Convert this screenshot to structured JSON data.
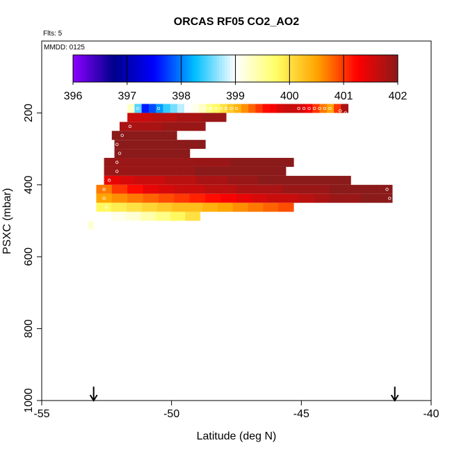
{
  "header": {
    "title": "ORCAS RF05 CO2_AO2",
    "flights_note": "Flts: 5",
    "date_note": "MMDD: 0125"
  },
  "colorbar": {
    "ticks": [
      "396",
      "397",
      "398",
      "399",
      "400",
      "401",
      "402"
    ],
    "min": 396,
    "max": 402,
    "stops": [
      "#8B00FF",
      "#00008B",
      "#0000FF",
      "#00BFFF",
      "#FFFFFF",
      "#FFFF66",
      "#FFA500",
      "#FF0000",
      "#8B1A1A"
    ]
  },
  "chart_data": {
    "type": "heatmap",
    "title": "ORCAS RF05 CO2_AO2",
    "xlabel": "Latitude (deg N)",
    "ylabel": "PSXC (mbar)",
    "xlim": [
      -55,
      -40
    ],
    "ylim": [
      1000,
      0
    ],
    "x_ticks": [
      "-55",
      "-50",
      "-45",
      "-40"
    ],
    "y_ticks": [
      "200",
      "400",
      "600",
      "800",
      "1000"
    ],
    "arrow_latitudes": [
      -53,
      -41.4
    ],
    "pressure_bands": [
      {
        "p": 187.5,
        "lat_start": -51.7,
        "lat_end": -43.2,
        "values": [
          399.3,
          398.5,
          397.6,
          397.8,
          398.1,
          398.4,
          398.6,
          398.8,
          399.0,
          399.1,
          399.3,
          399.6,
          399.8,
          400.0,
          400.2,
          400.4,
          400.6,
          400.8,
          401.0,
          401.2,
          401.3,
          401.5,
          401.6,
          401.6,
          401.5,
          401.3,
          401.0,
          400.7,
          400.5,
          401.0,
          401.8
        ]
      },
      {
        "p": 212.5,
        "lat_start": -51.7,
        "lat_end": -47.9,
        "values": [
          401.6,
          401.6,
          401.7,
          401.7,
          401.8,
          401.8,
          401.9,
          401.9
        ]
      },
      {
        "p": 237.5,
        "lat_start": -52.0,
        "lat_end": -48.7,
        "values": [
          401.8,
          401.8,
          401.8,
          401.9,
          401.9,
          401.9
        ]
      },
      {
        "p": 262.5,
        "lat_start": -52.3,
        "lat_end": -49.8,
        "values": [
          402.0,
          402.0,
          402.0,
          402.0,
          402.0
        ]
      },
      {
        "p": 287.5,
        "lat_start": -52.2,
        "lat_end": -48.7,
        "values": [
          402.0,
          402.0,
          402.0,
          402.0,
          402.0,
          402.0
        ]
      },
      {
        "p": 312.5,
        "lat_start": -52.2,
        "lat_end": -49.3,
        "values": [
          402.0,
          402.0,
          402.0,
          402.0,
          402.0
        ]
      },
      {
        "p": 337.5,
        "lat_start": -52.6,
        "lat_end": -45.3,
        "values": [
          401.9,
          401.9,
          401.9,
          401.9,
          401.9,
          401.9,
          401.9,
          401.9,
          402.0,
          402.0,
          402.0,
          402.0
        ]
      },
      {
        "p": 362.5,
        "lat_start": -52.6,
        "lat_end": -45.6,
        "values": [
          401.9,
          401.9,
          401.9,
          401.9,
          401.9,
          401.9,
          402.0,
          402.0,
          402.0,
          402.0,
          402.0,
          402.0
        ]
      },
      {
        "p": 387.5,
        "lat_start": -52.6,
        "lat_end": -43.1,
        "values": [
          401.4,
          401.5,
          401.6,
          401.6,
          401.7,
          401.7,
          401.8,
          401.8,
          401.9,
          401.9,
          402.0,
          402.0,
          402.0,
          402.0,
          402.0,
          402.0
        ]
      },
      {
        "p": 412.5,
        "lat_start": -52.9,
        "lat_end": -41.5,
        "values": [
          400.7,
          401.0,
          401.2,
          401.4,
          401.5,
          401.6,
          401.6,
          401.7,
          401.7,
          401.8,
          401.8,
          401.8,
          401.9,
          401.9,
          401.9,
          402.0,
          402.0,
          402.0,
          402.0
        ]
      },
      {
        "p": 437.5,
        "lat_start": -52.9,
        "lat_end": -41.5,
        "values": [
          400.5,
          400.6,
          400.7,
          400.8,
          400.9,
          401.0,
          401.1,
          401.2,
          401.3,
          401.4,
          401.5,
          401.6,
          401.6,
          401.7,
          401.8,
          401.9,
          401.9,
          402.0,
          402.0
        ]
      },
      {
        "p": 462.5,
        "lat_start": -52.9,
        "lat_end": -45.3,
        "values": [
          399.8,
          399.9,
          400.0,
          400.1,
          400.2,
          400.3,
          400.3,
          400.4,
          400.5,
          400.6,
          400.7,
          400.8,
          400.9
        ]
      },
      {
        "p": 487.5,
        "lat_start": -52.9,
        "lat_end": -48.9,
        "values": [
          399.0,
          399.1,
          399.2,
          399.4,
          399.6,
          399.8,
          400.0
        ]
      },
      {
        "p": 512.5,
        "lat_start": -53.2,
        "lat_end": -53.0,
        "values": [
          399.2
        ]
      }
    ],
    "marker_latitudes": [
      -51.5,
      -51.3,
      -50.5,
      -49.2,
      -49.0,
      -48.7,
      -48.5,
      -48.3,
      -48.1,
      -47.9,
      -47.7,
      -47.5,
      -45.1,
      -44.9,
      -44.7,
      -44.5,
      -44.3,
      -44.1,
      -43.9,
      -43.5,
      -43.3,
      -51.6,
      -51.9,
      -52.1,
      -52.0,
      -52.1,
      -52.1,
      -52.4,
      -52.6,
      -52.6,
      -52.5,
      -52.7,
      -52.8,
      -41.7,
      -41.6
    ]
  }
}
